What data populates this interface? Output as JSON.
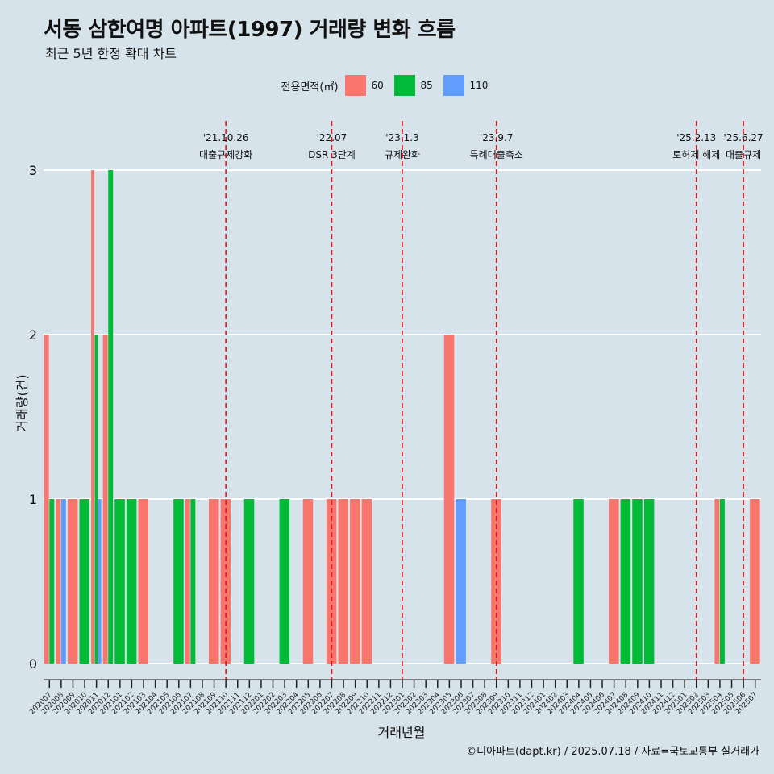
{
  "title": "서동 삼한여명 아파트(1997) 거래량 변화 흐름",
  "subtitle": "최근 5년 한정 확대 차트",
  "caption": "©디아파트(dapt.kr) / 2025.07.18 / 자료=국토교통부 실거래가",
  "legend": {
    "title": "전용면적(㎡)",
    "items": [
      {
        "label": "60",
        "color": "#F8766D"
      },
      {
        "label": "85",
        "color": "#00BA38"
      },
      {
        "label": "110",
        "color": "#619CFF"
      }
    ]
  },
  "chart_data": {
    "type": "bar",
    "xlabel": "거래년월",
    "ylabel": "거래량(건)",
    "ylim": [
      0,
      3
    ],
    "yticks": [
      0,
      1,
      2,
      3
    ],
    "grid": true,
    "legend_position": "top",
    "categories": [
      "202007",
      "202008",
      "202009",
      "202010",
      "202011",
      "202012",
      "202101",
      "202102",
      "202103",
      "202104",
      "202105",
      "202106",
      "202107",
      "202108",
      "202109",
      "202110",
      "202111",
      "202112",
      "202201",
      "202202",
      "202203",
      "202204",
      "202205",
      "202206",
      "202207",
      "202208",
      "202209",
      "202210",
      "202211",
      "202212",
      "202301",
      "202302",
      "202303",
      "202304",
      "202305",
      "202306",
      "202307",
      "202308",
      "202309",
      "202310",
      "202311",
      "202312",
      "202401",
      "202402",
      "202403",
      "202404",
      "202405",
      "202406",
      "202407",
      "202408",
      "202409",
      "202410",
      "202411",
      "202412",
      "202501",
      "202502",
      "202503",
      "202504",
      "202505",
      "202506",
      "202507"
    ],
    "series": [
      {
        "name": "60",
        "color": "#F8766D",
        "values": [
          2,
          1,
          1,
          0,
          3,
          2,
          0,
          0,
          1,
          0,
          0,
          0,
          1,
          0,
          1,
          1,
          0,
          0,
          0,
          0,
          0,
          0,
          1,
          0,
          1,
          1,
          1,
          1,
          0,
          0,
          0,
          0,
          0,
          0,
          2,
          0,
          0,
          0,
          1,
          0,
          0,
          0,
          0,
          0,
          0,
          0,
          0,
          0,
          1,
          0,
          0,
          0,
          0,
          0,
          0,
          0,
          0,
          1,
          0,
          0,
          1
        ]
      },
      {
        "name": "85",
        "color": "#00BA38",
        "values": [
          1,
          0,
          0,
          1,
          2,
          3,
          1,
          1,
          0,
          0,
          0,
          1,
          1,
          0,
          0,
          0,
          0,
          1,
          0,
          0,
          1,
          0,
          0,
          0,
          0,
          0,
          0,
          0,
          0,
          0,
          0,
          0,
          0,
          0,
          0,
          0,
          0,
          0,
          0,
          0,
          0,
          0,
          0,
          0,
          0,
          1,
          0,
          0,
          0,
          1,
          1,
          1,
          0,
          0,
          0,
          0,
          0,
          1,
          0,
          0,
          0
        ]
      },
      {
        "name": "110",
        "color": "#619CFF",
        "values": [
          0,
          1,
          0,
          0,
          1,
          0,
          0,
          0,
          0,
          0,
          0,
          0,
          0,
          0,
          0,
          0,
          0,
          0,
          0,
          0,
          0,
          0,
          0,
          0,
          0,
          0,
          0,
          0,
          0,
          0,
          0,
          0,
          0,
          0,
          0,
          1,
          0,
          0,
          0,
          0,
          0,
          0,
          0,
          0,
          0,
          0,
          0,
          0,
          0,
          0,
          0,
          0,
          0,
          0,
          0,
          0,
          0,
          0,
          0,
          0,
          0
        ]
      }
    ],
    "annotations": [
      {
        "x": "202110",
        "date": "'21.10.26",
        "label": "대출규제강화"
      },
      {
        "x": "202207",
        "date": "'22.07",
        "label": "DSR 3단계"
      },
      {
        "x": "202301",
        "date": "'23.1.3",
        "label": "규제완화"
      },
      {
        "x": "202309",
        "date": "'23.9.7",
        "label": "특례대출축소"
      },
      {
        "x": "202502",
        "date": "'25.2.13",
        "label": "토허제 해제"
      },
      {
        "x": "202506",
        "date": "'25.6.27",
        "label": "대출규제"
      }
    ]
  }
}
